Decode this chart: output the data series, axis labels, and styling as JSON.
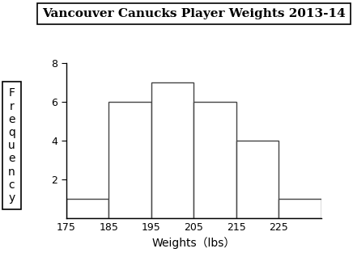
{
  "title": "Vancouver Canucks Player Weights 2013-14",
  "xlabel": "Weights（lbs）",
  "ylabel": "F\nr\ne\nq\nu\ne\nn\nc\ny",
  "bin_edges": [
    175,
    185,
    195,
    205,
    215,
    225,
    235
  ],
  "frequencies": [
    1,
    6,
    7,
    6,
    4,
    1
  ],
  "bar_facecolor": "white",
  "bar_edgecolor": "#444444",
  "ylim": [
    0,
    8
  ],
  "yticks": [
    2,
    4,
    6,
    8
  ],
  "xticks": [
    175,
    185,
    195,
    205,
    215,
    225
  ],
  "xlim": [
    175,
    235
  ],
  "title_fontsize": 11,
  "axis_label_fontsize": 10,
  "tick_fontsize": 9,
  "ylabel_fontsize": 10
}
